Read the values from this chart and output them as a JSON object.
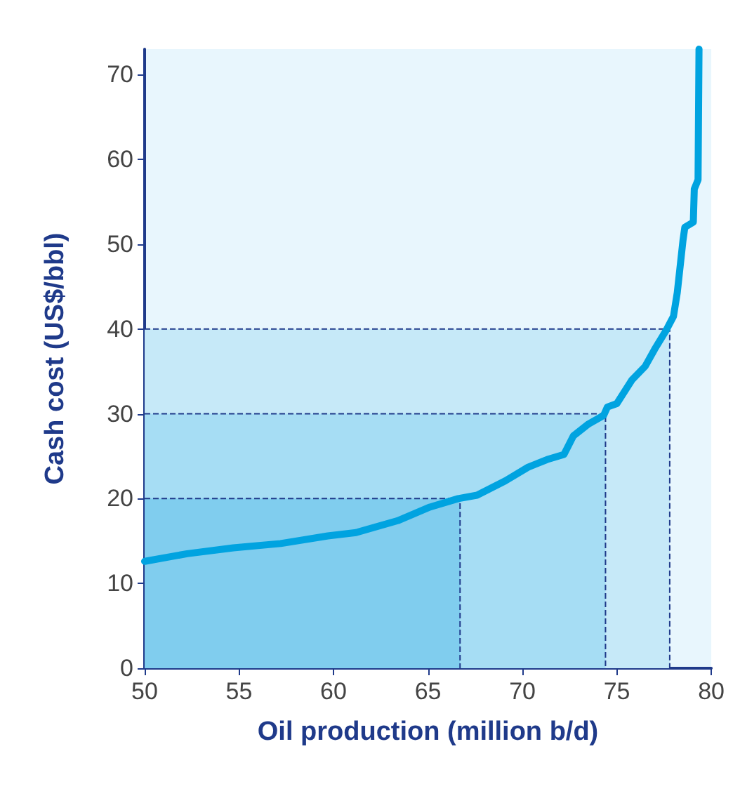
{
  "chart_data": {
    "type": "line",
    "xlabel": "Oil production (million b/d)",
    "ylabel": "Cash cost (US$/bbl)",
    "xlim": [
      50,
      80
    ],
    "xticks": [
      50,
      55,
      60,
      65,
      70,
      75,
      80
    ],
    "ylim": [
      0,
      73
    ],
    "yticks": [
      0,
      10,
      20,
      30,
      40,
      50,
      60,
      70
    ],
    "grid": false,
    "marker": "none",
    "line_style": "solid",
    "series": [
      {
        "type": "area",
        "color": "#c6e9f8",
        "line_style": "dashed",
        "x": [
          50,
          77.8,
          77.8
        ],
        "values": [
          40,
          40,
          0
        ]
      },
      {
        "type": "area",
        "color": "#a6ddf4",
        "line_style": "dashed",
        "x": [
          50,
          74.4,
          74.4
        ],
        "values": [
          30,
          30,
          0
        ]
      },
      {
        "type": "area",
        "color": "#80cdee",
        "line_style": "dashed",
        "x": [
          50,
          66.7,
          66.7
        ],
        "values": [
          20,
          20,
          0
        ]
      },
      {
        "color": "#00a3e0",
        "x": [
          50,
          52.25,
          54.7,
          57.2,
          59.7,
          61.2,
          63.4,
          65.1,
          66.6,
          67.6,
          69.1,
          70.3,
          71.3,
          72.2,
          72.7,
          73.5,
          74.3,
          74.5,
          75.0,
          75.8,
          76.5,
          77.0,
          77.6,
          78.0,
          78.2,
          78.5,
          78.6,
          79.05,
          79.1,
          79.3,
          79.35
        ],
        "values": [
          12.6,
          13.5,
          14.2,
          14.7,
          15.6,
          16.0,
          17.4,
          19.0,
          20.0,
          20.4,
          22.1,
          23.7,
          24.6,
          25.2,
          27.4,
          28.8,
          29.8,
          30.8,
          31.2,
          34.0,
          35.6,
          37.6,
          39.8,
          41.5,
          44.3,
          50.4,
          52.0,
          52.6,
          56.5,
          57.6,
          73.0
        ]
      }
    ]
  }
}
